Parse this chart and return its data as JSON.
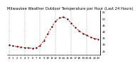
{
  "title": "Milwaukee Weather Outdoor Temperature per Hour (Last 24 Hours)",
  "hours": [
    0,
    1,
    2,
    3,
    4,
    5,
    6,
    7,
    8,
    9,
    10,
    11,
    12,
    13,
    14,
    15,
    16,
    17,
    18,
    19,
    20,
    21,
    22,
    23
  ],
  "temps": [
    29.5,
    28.8,
    28.2,
    27.9,
    27.5,
    27.3,
    27.0,
    27.2,
    29.0,
    33.0,
    38.5,
    43.5,
    48.0,
    50.5,
    51.0,
    49.5,
    46.5,
    43.0,
    40.5,
    38.5,
    37.0,
    35.5,
    34.5,
    34.0
  ],
  "line_color": "#ff0000",
  "marker_color": "#000000",
  "grid_color": "#888888",
  "bg_color": "#ffffff",
  "ylim": [
    22,
    56
  ],
  "yticks": [
    25,
    30,
    35,
    40,
    45,
    50,
    55
  ],
  "title_fontsize": 3.8,
  "tick_fontsize": 2.8,
  "vgrid_positions": [
    0,
    4,
    8,
    12,
    16,
    20
  ]
}
